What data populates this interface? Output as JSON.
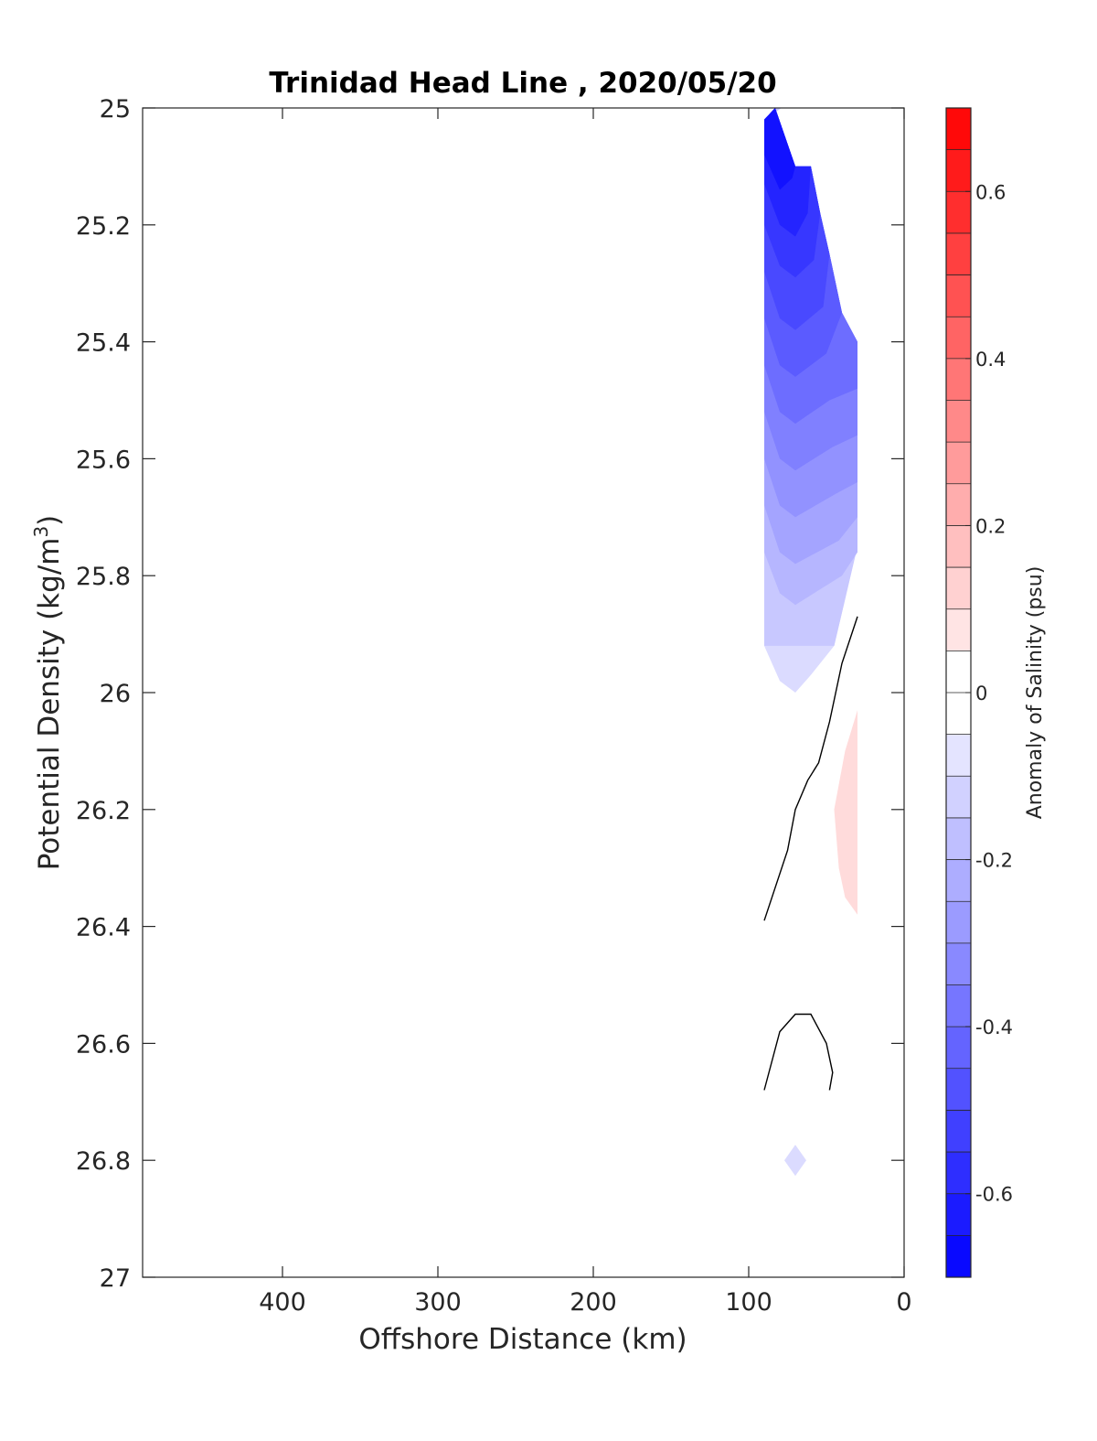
{
  "chart_data": {
    "type": "contour",
    "title": "Trinidad Head Line , 2020/05/20",
    "xlabel": "Offshore Distance (km)",
    "ylabel": "Potential Density (kg/m",
    "ylabel_sup": "3",
    "ylabel_close": ")",
    "xlim": [
      490,
      0
    ],
    "ylim": [
      25,
      27
    ],
    "x_direction": "reversed",
    "y_direction": "reversed",
    "x_ticks": [
      400,
      300,
      200,
      100,
      0
    ],
    "y_ticks": [
      25,
      25.2,
      25.4,
      25.6,
      25.8,
      26,
      26.2,
      26.4,
      26.6,
      26.8,
      27
    ],
    "colorbar": {
      "label": "Anomaly of Salinity (psu)",
      "range": [
        -0.7,
        0.7
      ],
      "step": 0.05,
      "ticks": [
        0.6,
        0.4,
        0.2,
        0,
        -0.2,
        -0.4,
        -0.6
      ],
      "low_color": "#0000ff",
      "mid_color": "#ffffff",
      "high_color": "#ff0000"
    },
    "negative_region": {
      "boundary": [
        [
          83,
          25
        ],
        [
          79,
          25
        ],
        [
          90,
          25.02
        ],
        [
          90,
          25.8
        ],
        [
          90,
          25.92
        ],
        [
          80,
          25.98
        ],
        [
          70,
          26.0
        ],
        [
          60,
          25.97
        ],
        [
          45,
          25.92
        ],
        [
          30,
          25.75
        ],
        [
          30,
          25.4
        ],
        [
          40,
          25.35
        ],
        [
          48,
          25.25
        ],
        [
          54,
          25.18
        ],
        [
          60,
          25.1
        ],
        [
          70,
          25.1
        ]
      ],
      "bands": [
        {
          "value": -0.65,
          "polygon": [
            [
              83,
              25
            ],
            [
              90,
              25.02
            ],
            [
              90,
              25.08
            ],
            [
              80,
              25.14
            ],
            [
              72,
              25.12
            ],
            [
              70,
              25.1
            ]
          ]
        },
        {
          "value": -0.6,
          "polygon": [
            [
              83,
              25
            ],
            [
              90,
              25.02
            ],
            [
              90,
              25.13
            ],
            [
              80,
              25.2
            ],
            [
              70,
              25.22
            ],
            [
              62,
              25.18
            ],
            [
              60,
              25.1
            ],
            [
              70,
              25.1
            ]
          ]
        },
        {
          "value": -0.55,
          "polygon": [
            [
              83,
              25
            ],
            [
              90,
              25.02
            ],
            [
              90,
              25.2
            ],
            [
              80,
              25.27
            ],
            [
              70,
              25.29
            ],
            [
              58,
              25.26
            ],
            [
              54,
              25.18
            ],
            [
              60,
              25.1
            ],
            [
              70,
              25.1
            ]
          ]
        },
        {
          "value": -0.5,
          "polygon": [
            [
              83,
              25
            ],
            [
              90,
              25.02
            ],
            [
              90,
              25.28
            ],
            [
              80,
              25.36
            ],
            [
              70,
              25.38
            ],
            [
              52,
              25.34
            ],
            [
              48,
              25.25
            ],
            [
              54,
              25.18
            ],
            [
              60,
              25.1
            ],
            [
              70,
              25.1
            ]
          ]
        },
        {
          "value": -0.45,
          "polygon": [
            [
              83,
              25
            ],
            [
              90,
              25.02
            ],
            [
              90,
              25.36
            ],
            [
              80,
              25.44
            ],
            [
              70,
              25.46
            ],
            [
              50,
              25.42
            ],
            [
              40,
              25.35
            ],
            [
              48,
              25.25
            ],
            [
              54,
              25.18
            ],
            [
              60,
              25.1
            ],
            [
              70,
              25.1
            ]
          ]
        },
        {
          "value": -0.4,
          "polygon": [
            [
              83,
              25
            ],
            [
              90,
              25.02
            ],
            [
              90,
              25.44
            ],
            [
              80,
              25.52
            ],
            [
              70,
              25.54
            ],
            [
              48,
              25.5
            ],
            [
              30,
              25.48
            ],
            [
              30,
              25.4
            ],
            [
              40,
              25.35
            ],
            [
              48,
              25.25
            ],
            [
              54,
              25.18
            ],
            [
              60,
              25.1
            ],
            [
              70,
              25.1
            ]
          ]
        },
        {
          "value": -0.35,
          "polygon": [
            [
              83,
              25
            ],
            [
              90,
              25.02
            ],
            [
              90,
              25.52
            ],
            [
              80,
              25.6
            ],
            [
              70,
              25.62
            ],
            [
              46,
              25.58
            ],
            [
              30,
              25.56
            ],
            [
              30,
              25.4
            ],
            [
              40,
              25.35
            ],
            [
              48,
              25.25
            ],
            [
              54,
              25.18
            ],
            [
              60,
              25.1
            ],
            [
              70,
              25.1
            ]
          ]
        },
        {
          "value": -0.3,
          "polygon": [
            [
              83,
              25
            ],
            [
              90,
              25.02
            ],
            [
              90,
              25.6
            ],
            [
              80,
              25.68
            ],
            [
              70,
              25.7
            ],
            [
              44,
              25.66
            ],
            [
              30,
              25.64
            ],
            [
              30,
              25.4
            ],
            [
              40,
              25.35
            ],
            [
              48,
              25.25
            ],
            [
              54,
              25.18
            ],
            [
              60,
              25.1
            ],
            [
              70,
              25.1
            ]
          ]
        },
        {
          "value": -0.25,
          "polygon": [
            [
              83,
              25
            ],
            [
              90,
              25.02
            ],
            [
              90,
              25.68
            ],
            [
              80,
              25.76
            ],
            [
              70,
              25.78
            ],
            [
              42,
              25.74
            ],
            [
              30,
              25.7
            ],
            [
              30,
              25.4
            ],
            [
              40,
              25.35
            ],
            [
              48,
              25.25
            ],
            [
              54,
              25.18
            ],
            [
              60,
              25.1
            ],
            [
              70,
              25.1
            ]
          ]
        },
        {
          "value": -0.2,
          "polygon": [
            [
              83,
              25
            ],
            [
              90,
              25.02
            ],
            [
              90,
              25.76
            ],
            [
              80,
              25.83
            ],
            [
              70,
              25.85
            ],
            [
              40,
              25.8
            ],
            [
              30,
              25.76
            ],
            [
              30,
              25.4
            ],
            [
              40,
              25.35
            ],
            [
              48,
              25.25
            ],
            [
              54,
              25.18
            ],
            [
              60,
              25.1
            ],
            [
              70,
              25.1
            ]
          ]
        }
      ]
    },
    "extra_negative_patch": {
      "value": -0.1,
      "center": [
        70,
        26.8
      ]
    },
    "positive_region": {
      "value": 0.1,
      "polygon": [
        [
          30,
          26.03
        ],
        [
          38,
          26.1
        ],
        [
          45,
          26.2
        ],
        [
          42,
          26.3
        ],
        [
          38,
          26.35
        ],
        [
          30,
          26.38
        ]
      ]
    },
    "zero_contours": [
      {
        "points": [
          [
            30,
            25.87
          ],
          [
            40,
            25.95
          ],
          [
            48,
            26.05
          ],
          [
            55,
            26.12
          ],
          [
            62,
            26.15
          ],
          [
            70,
            26.2
          ],
          [
            75,
            26.27
          ],
          [
            90,
            26.39
          ]
        ]
      },
      {
        "points": [
          [
            90,
            26.68
          ],
          [
            80,
            26.58
          ],
          [
            70,
            26.55
          ],
          [
            60,
            26.55
          ],
          [
            50,
            26.6
          ],
          [
            46,
            26.65
          ],
          [
            48,
            26.68
          ]
        ]
      }
    ]
  }
}
